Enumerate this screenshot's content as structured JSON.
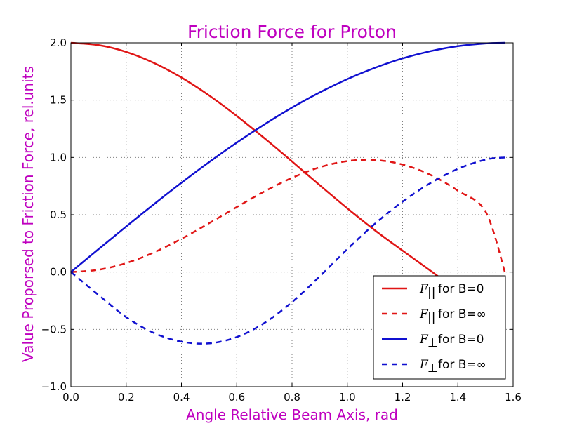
{
  "colors": {
    "title": "#bf00bf",
    "axis_label": "#bf00bf",
    "red": "#e01515",
    "blue": "#1010d0",
    "grid": "#808080"
  },
  "chart_data": {
    "type": "line",
    "title": "Friction Force for Proton",
    "xlabel": "Angle Relative Beam Axis, rad",
    "ylabel": "Value Proporsed to Friction Force, rel.units",
    "xlim": [
      0.0,
      1.6
    ],
    "ylim": [
      -1.0,
      2.0
    ],
    "xticks": [
      "0.0",
      "0.2",
      "0.4",
      "0.6",
      "0.8",
      "1.0",
      "1.2",
      "1.4",
      "1.6"
    ],
    "yticks": [
      "−1.0",
      "−0.5",
      "0.0",
      "0.5",
      "1.0",
      "1.5",
      "2.0"
    ],
    "grid": true,
    "legend_position": "lower-right",
    "x": [
      0.0,
      0.1,
      0.2,
      0.3,
      0.4,
      0.5,
      0.6,
      0.7,
      0.8,
      0.9,
      1.0,
      1.1,
      1.2,
      1.3,
      1.4,
      1.5,
      1.57
    ],
    "series": [
      {
        "name": "for B=0",
        "symbol": "F",
        "subscript": "||",
        "color": "red",
        "style": "solid",
        "values": [
          2.0,
          1.98,
          1.921,
          1.825,
          1.697,
          1.541,
          1.362,
          1.168,
          0.965,
          0.758,
          0.556,
          0.364,
          0.187,
          0.013,
          -0.163,
          -0.343,
          -0.46
        ]
      },
      {
        "name": "for B=∞",
        "symbol": "F",
        "subscript": "||",
        "color": "red",
        "style": "dashed",
        "values": [
          0.0,
          0.02,
          0.078,
          0.171,
          0.29,
          0.426,
          0.567,
          0.703,
          0.822,
          0.914,
          0.968,
          0.978,
          0.938,
          0.849,
          0.71,
          0.528,
          0.0
        ]
      },
      {
        "name": "for B=0",
        "symbol": "F",
        "subscript": "⊥",
        "color": "blue",
        "style": "solid",
        "values": [
          0.0,
          0.2,
          0.397,
          0.591,
          0.779,
          0.959,
          1.129,
          1.288,
          1.435,
          1.567,
          1.683,
          1.782,
          1.864,
          1.927,
          1.971,
          1.995,
          2.0
        ]
      },
      {
        "name": "for B=∞",
        "symbol": "F",
        "subscript": "⊥",
        "color": "blue",
        "style": "dashed",
        "values": [
          0.0,
          -0.2,
          -0.393,
          -0.531,
          -0.607,
          -0.622,
          -0.567,
          -0.444,
          -0.262,
          -0.038,
          0.2,
          0.422,
          0.614,
          0.775,
          0.9,
          0.981,
          1.0
        ]
      }
    ]
  }
}
